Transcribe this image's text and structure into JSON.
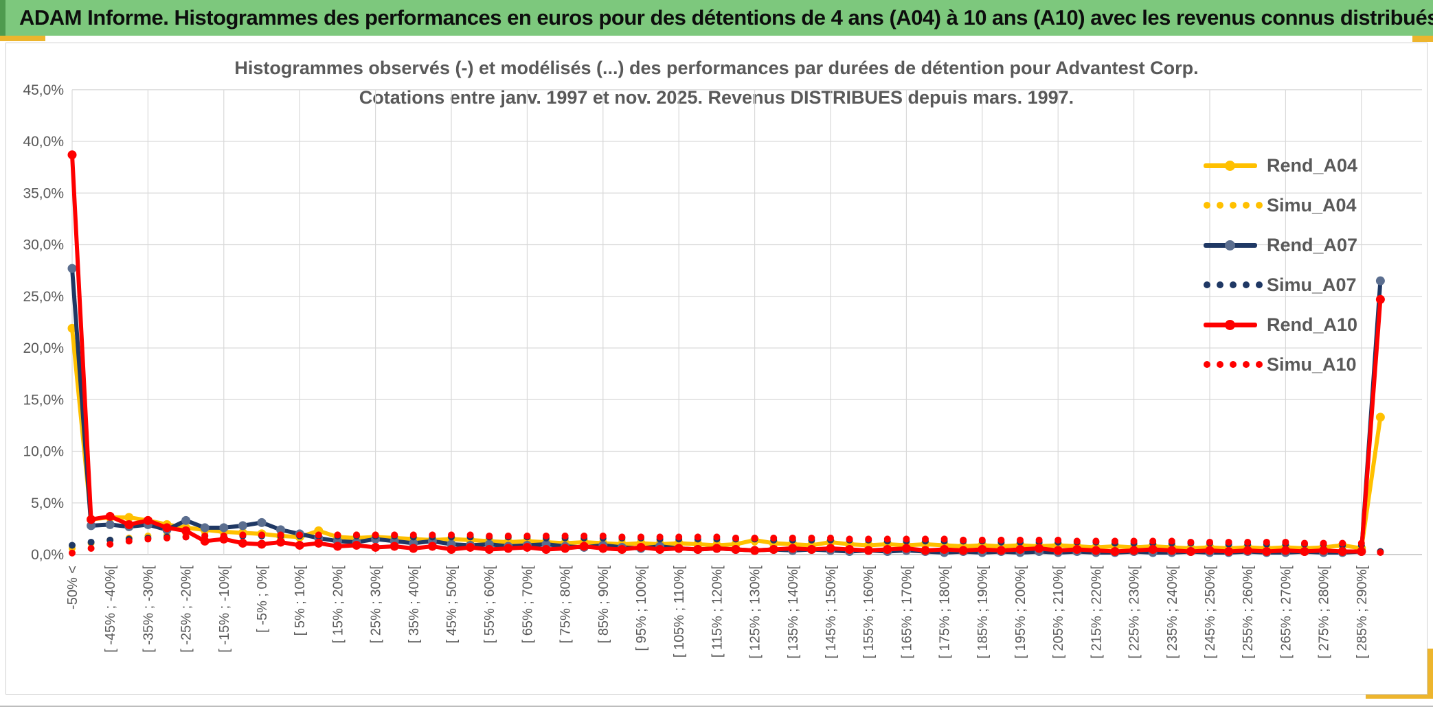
{
  "header": {
    "title": "ADAM Informe. Histogrammes des performances en euros pour des détentions de 4 ans (A04) à 10 ans (A10) avec les revenus connus distribués",
    "band_color": "#7DC87D",
    "accent_color": "#EDB52D"
  },
  "chart_title": {
    "line1": "Histogrammes observés (-) et modélisés (...) des performances par durées de détention pour Advantest Corp.",
    "line2": "Cotations entre janv. 1997 et nov. 2025. Revenus DISTRIBUES depuis mars. 1997."
  },
  "chart_data": {
    "type": "line",
    "title": "Histogrammes observés (-) et modélisés (...) des performances par durées de détention pour Advantest Corp.",
    "subtitle": "Cotations entre janv. 1997 et nov. 2025. Revenus DISTRIBUES depuis mars. 1997.",
    "ylim": [
      0,
      45
    ],
    "y_tick_step_pct": 5,
    "y_tick_labels": [
      "45,0%",
      "40,0%",
      "35,0%",
      "30,0%",
      "25,0%",
      "20,0%",
      "15,0%",
      "10,0%",
      "5,0%",
      "0,0%"
    ],
    "n_bins": 70,
    "bin_width_pct": 5,
    "label_every_n_bins": 2,
    "gridline_every_n_bins": 4,
    "grid_color": "#D9D9D9",
    "axis_color": "#BFBFBF",
    "text_color": "#595959",
    "legend_position": "right-inside",
    "x_tick_labels": [
      "-50% <",
      "[ -45% ; -40%[",
      "[ -35% ; -30%[",
      "[ -25% ; -20%[",
      "[ -15% ; -10%[",
      "[ -5% ; 0%[",
      "[ 5% ; 10%[",
      "[ 15% ; 20%[",
      "[ 25% ; 30%[",
      "[ 35% ; 40%[",
      "[ 45% ; 50%[",
      "[ 55% ; 60%[",
      "[ 65% ; 70%[",
      "[ 75% ; 80%[",
      "[ 85% ; 90%[",
      "[ 95% ; 100%[",
      "[ 105% ; 110%[",
      "[ 115% ; 120%[",
      "[ 125% ; 130%[",
      "[ 135% ; 140%[",
      "[ 145% ; 150%[",
      "[ 155% ; 160%[",
      "[ 165% ; 170%[",
      "[ 175% ; 180%[",
      "[ 185% ; 190%[",
      "[ 195% ; 200%[",
      "[ 205% ; 210%[",
      "[ 215% ; 220%[",
      "[ 225% ; 230%[",
      "[ 235% ; 240%[",
      "[ 245% ; 250%[",
      "[ 255% ; 260%[",
      "[ 265% ; 270%[",
      "[ 275% ; 280%[",
      "[ 285% ; 290%["
    ],
    "series": [
      {
        "name": "Rend_A04",
        "style": "solid",
        "color": "#FFC000",
        "marker_color": "#FFC000",
        "values": [
          21.9,
          3.4,
          3.6,
          3.6,
          3.3,
          2.9,
          2.6,
          2.4,
          2.2,
          2.1,
          2.0,
          1.8,
          1.7,
          2.3,
          1.7,
          1.6,
          1.7,
          1.6,
          1.5,
          1.4,
          1.5,
          1.4,
          1.3,
          1.2,
          1.3,
          1.2,
          1.1,
          1.2,
          1.1,
          1.0,
          1.1,
          1.0,
          1.1,
          1.0,
          0.9,
          1.0,
          1.4,
          1.1,
          1.0,
          0.9,
          1.2,
          1.0,
          0.9,
          1.0,
          0.9,
          1.0,
          0.9,
          0.8,
          0.9,
          0.8,
          0.9,
          0.8,
          0.9,
          0.8,
          0.7,
          0.8,
          0.7,
          0.8,
          0.7,
          0.6,
          0.7,
          0.6,
          0.7,
          0.6,
          0.7,
          0.6,
          0.7,
          0.9,
          0.6,
          13.3
        ]
      },
      {
        "name": "Simu_A04",
        "style": "dotted",
        "color": "#FFC000",
        "values": [
          0.6,
          1.1,
          1.4,
          1.6,
          1.8,
          1.9,
          2.0,
          2.0,
          2.1,
          2.1,
          2.1,
          2.0,
          2.0,
          2.0,
          1.9,
          1.9,
          1.9,
          1.8,
          1.8,
          1.8,
          1.7,
          1.7,
          1.7,
          1.6,
          1.6,
          1.6,
          1.5,
          1.5,
          1.5,
          1.4,
          1.4,
          1.4,
          1.3,
          1.3,
          1.3,
          1.2,
          1.2,
          1.2,
          1.1,
          1.1,
          1.1,
          1.1,
          1.0,
          1.0,
          1.0,
          0.9,
          0.9,
          0.9,
          0.9,
          0.8,
          0.8,
          0.8,
          0.8,
          0.7,
          0.7,
          0.7,
          0.7,
          0.6,
          0.6,
          0.6,
          0.6,
          0.6,
          0.5,
          0.5,
          0.5,
          0.5,
          0.5,
          0.4,
          0.4,
          0.3
        ]
      },
      {
        "name": "Rend_A07",
        "style": "solid",
        "color": "#1F3864",
        "marker_color": "#5B6E8F",
        "values": [
          27.7,
          2.8,
          2.9,
          2.7,
          2.9,
          2.4,
          3.3,
          2.6,
          2.6,
          2.8,
          3.1,
          2.4,
          2.0,
          1.6,
          1.3,
          1.2,
          1.5,
          1.3,
          1.1,
          1.3,
          1.0,
          0.9,
          1.0,
          0.8,
          0.9,
          1.0,
          0.8,
          0.7,
          0.9,
          0.7,
          0.6,
          0.8,
          0.6,
          0.5,
          0.6,
          0.5,
          0.4,
          0.5,
          0.4,
          0.5,
          0.4,
          0.3,
          0.4,
          0.3,
          0.4,
          0.3,
          0.2,
          0.3,
          0.2,
          0.3,
          0.2,
          0.3,
          0.2,
          0.3,
          0.2,
          0.2,
          0.3,
          0.2,
          0.2,
          0.3,
          0.2,
          0.2,
          0.3,
          0.2,
          0.2,
          0.3,
          0.2,
          0.2,
          0.3,
          26.5
        ]
      },
      {
        "name": "Simu_A07",
        "style": "dotted",
        "color": "#1F3864",
        "values": [
          0.9,
          1.2,
          1.4,
          1.5,
          1.6,
          1.7,
          1.7,
          1.8,
          1.8,
          1.8,
          1.8,
          1.8,
          1.8,
          1.8,
          1.8,
          1.8,
          1.8,
          1.8,
          1.7,
          1.7,
          1.7,
          1.7,
          1.7,
          1.7,
          1.7,
          1.6,
          1.6,
          1.6,
          1.6,
          1.6,
          1.6,
          1.5,
          1.5,
          1.5,
          1.5,
          1.5,
          1.5,
          1.4,
          1.4,
          1.4,
          1.4,
          1.4,
          1.4,
          1.3,
          1.3,
          1.3,
          1.3,
          1.3,
          1.3,
          1.2,
          1.2,
          1.2,
          1.2,
          1.2,
          1.2,
          1.1,
          1.1,
          1.1,
          1.1,
          1.1,
          1.1,
          1.0,
          1.0,
          1.0,
          1.0,
          1.0,
          1.0,
          0.9,
          0.9,
          0.3
        ]
      },
      {
        "name": "Rend_A10",
        "style": "solid",
        "color": "#FE0000",
        "marker_color": "#FE0000",
        "values": [
          38.7,
          3.4,
          3.7,
          2.9,
          3.3,
          2.6,
          2.3,
          1.3,
          1.5,
          1.1,
          1.0,
          1.2,
          0.9,
          1.1,
          0.8,
          0.9,
          0.7,
          0.8,
          0.6,
          0.8,
          0.5,
          0.7,
          0.5,
          0.6,
          0.7,
          0.5,
          0.6,
          0.8,
          0.6,
          0.5,
          0.7,
          0.5,
          0.6,
          0.5,
          0.6,
          0.5,
          0.4,
          0.5,
          0.6,
          0.5,
          0.6,
          0.5,
          0.4,
          0.5,
          0.6,
          0.4,
          0.5,
          0.4,
          0.5,
          0.4,
          0.5,
          0.6,
          0.4,
          0.5,
          0.4,
          0.3,
          0.4,
          0.5,
          0.4,
          0.3,
          0.4,
          0.3,
          0.4,
          0.3,
          0.4,
          0.3,
          0.4,
          0.3,
          0.3,
          24.7
        ]
      },
      {
        "name": "Simu_A10",
        "style": "dotted",
        "color": "#FE0000",
        "values": [
          0.15,
          0.6,
          1.0,
          1.3,
          1.5,
          1.6,
          1.7,
          1.8,
          1.8,
          1.9,
          1.9,
          1.9,
          1.9,
          1.9,
          1.9,
          1.9,
          1.9,
          1.9,
          1.9,
          1.9,
          1.9,
          1.9,
          1.8,
          1.8,
          1.8,
          1.8,
          1.8,
          1.8,
          1.8,
          1.7,
          1.7,
          1.7,
          1.7,
          1.7,
          1.7,
          1.6,
          1.6,
          1.6,
          1.6,
          1.6,
          1.6,
          1.5,
          1.5,
          1.5,
          1.5,
          1.5,
          1.5,
          1.4,
          1.4,
          1.4,
          1.4,
          1.4,
          1.4,
          1.3,
          1.3,
          1.3,
          1.3,
          1.3,
          1.3,
          1.2,
          1.2,
          1.2,
          1.2,
          1.2,
          1.2,
          1.1,
          1.1,
          1.1,
          1.1,
          0.2
        ]
      }
    ]
  }
}
